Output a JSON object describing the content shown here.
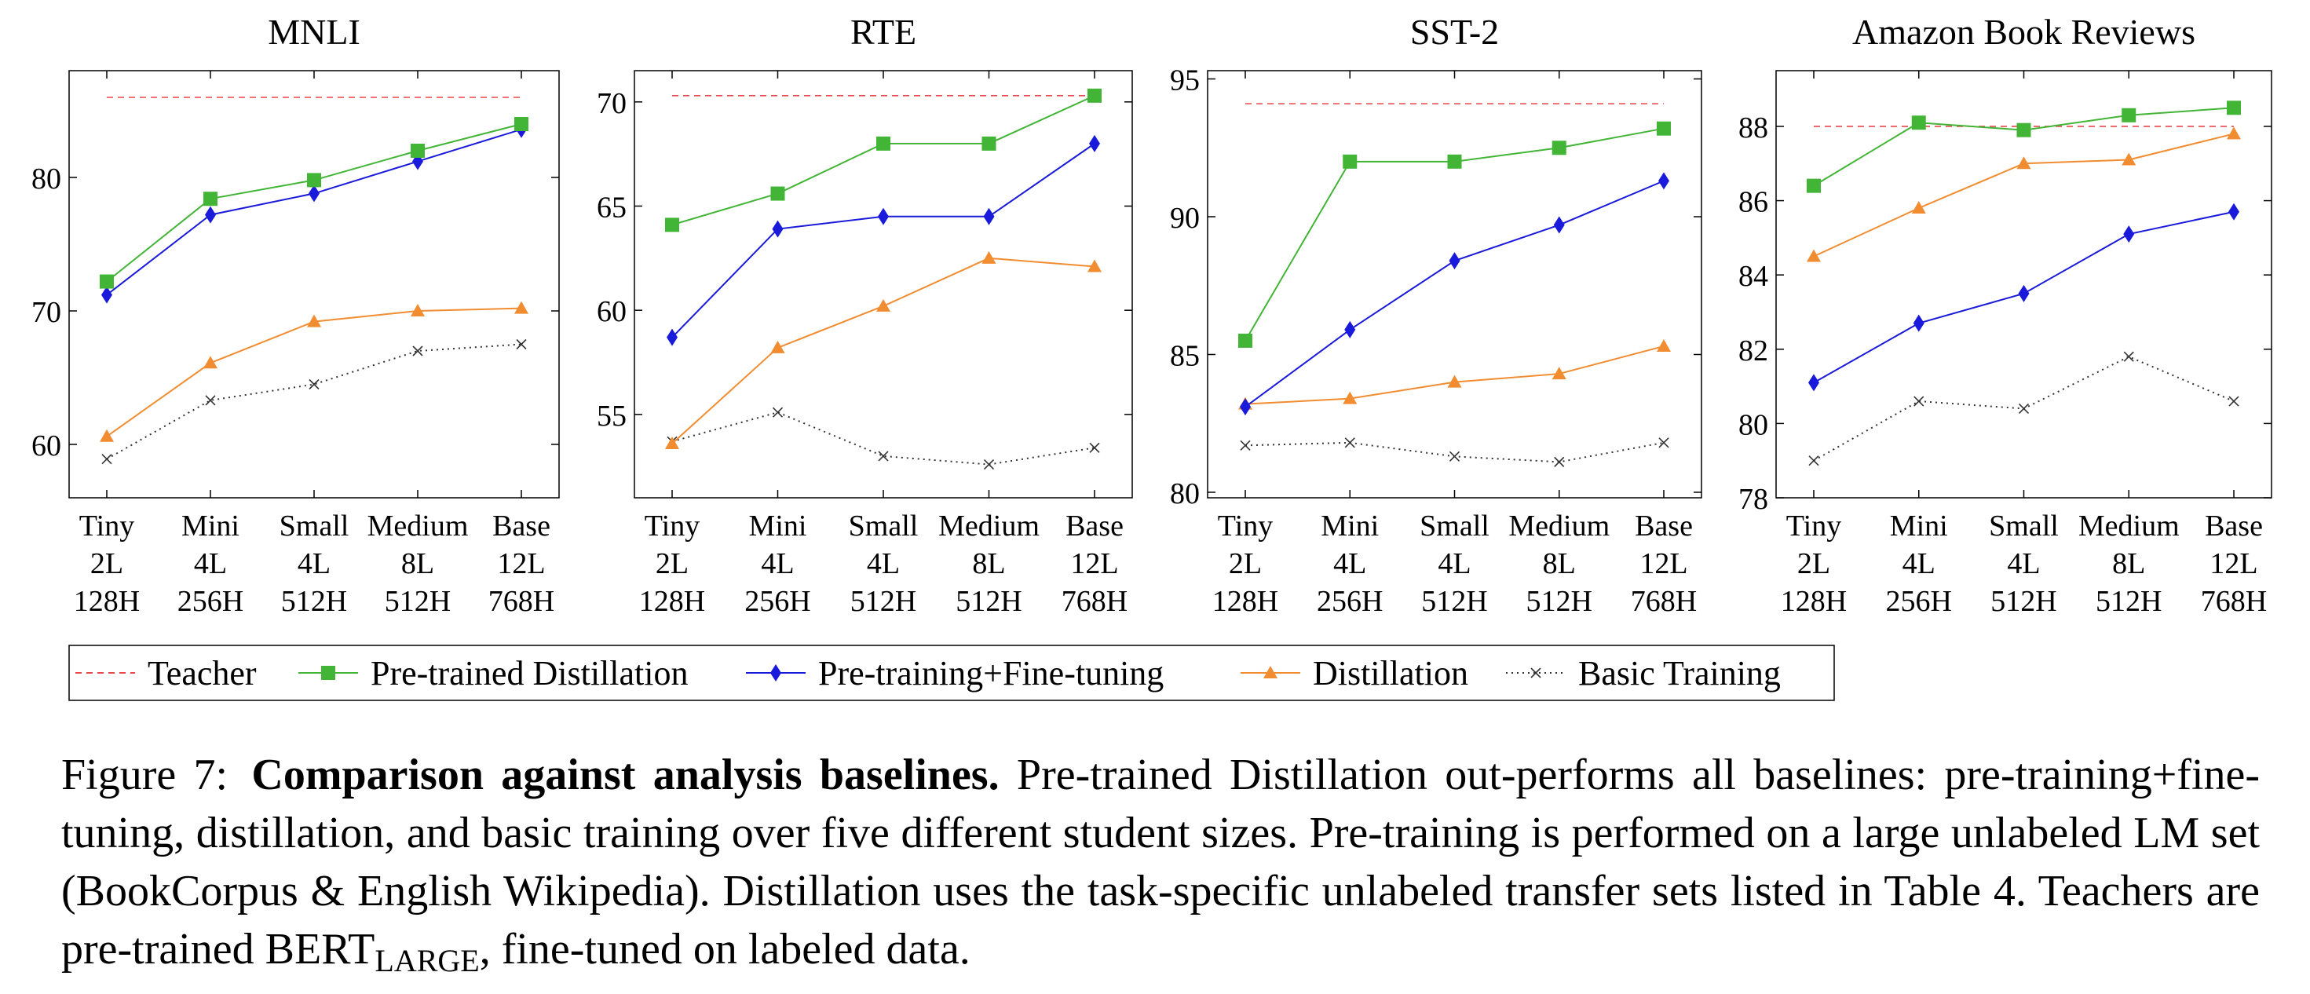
{
  "categories": [
    [
      "Tiny",
      "2L",
      "128H"
    ],
    [
      "Mini",
      "4L",
      "256H"
    ],
    [
      "Small",
      "4L",
      "512H"
    ],
    [
      "Medium",
      "8L",
      "512H"
    ],
    [
      "Base",
      "12L",
      "768H"
    ]
  ],
  "legend": [
    {
      "name": "Teacher",
      "color": "#e8474c",
      "marker": "none",
      "dash": "dashed"
    },
    {
      "name": "Pre-trained Distillation",
      "color": "#42b536",
      "marker": "square",
      "dash": "solid"
    },
    {
      "name": "Pre-training+Fine-tuning",
      "color": "#1a1adb",
      "marker": "diamond",
      "dash": "solid"
    },
    {
      "name": "Distillation",
      "color": "#f28c30",
      "marker": "triangle",
      "dash": "solid"
    },
    {
      "name": "Basic Training",
      "color": "#333333",
      "marker": "x",
      "dash": "dotted"
    }
  ],
  "chart_data": [
    {
      "type": "line",
      "title": "MNLI",
      "xlabel": "",
      "ylabel": "",
      "ylim": [
        56,
        88
      ],
      "yticks": [
        60,
        70,
        80
      ],
      "teacher": 86,
      "series": [
        {
          "name": "Pre-trained Distillation",
          "values": [
            72.2,
            78.4,
            79.8,
            82.0,
            84.0
          ]
        },
        {
          "name": "Pre-training+Fine-tuning",
          "values": [
            71.2,
            77.2,
            78.8,
            81.2,
            83.6
          ]
        },
        {
          "name": "Distillation",
          "values": [
            60.6,
            66.1,
            69.2,
            70.0,
            70.2
          ]
        },
        {
          "name": "Basic Training",
          "values": [
            58.9,
            63.3,
            64.5,
            67.0,
            67.5
          ]
        }
      ]
    },
    {
      "type": "line",
      "title": "RTE",
      "xlabel": "",
      "ylabel": "",
      "ylim": [
        51,
        71.5
      ],
      "yticks": [
        55,
        60,
        65,
        70
      ],
      "teacher": 70.3,
      "series": [
        {
          "name": "Pre-trained Distillation",
          "values": [
            64.1,
            65.6,
            68.0,
            68.0,
            70.3
          ]
        },
        {
          "name": "Pre-training+Fine-tuning",
          "values": [
            58.7,
            63.9,
            64.5,
            64.5,
            68.0
          ]
        },
        {
          "name": "Distillation",
          "values": [
            53.6,
            58.2,
            60.2,
            62.5,
            62.1
          ]
        },
        {
          "name": "Basic Training",
          "values": [
            53.7,
            55.1,
            53.0,
            52.6,
            53.4
          ]
        }
      ]
    },
    {
      "type": "line",
      "title": "SST-2",
      "xlabel": "",
      "ylabel": "",
      "ylim": [
        79.8,
        95.3
      ],
      "yticks": [
        80,
        85,
        90,
        95
      ],
      "teacher": 94.1,
      "series": [
        {
          "name": "Pre-trained Distillation",
          "values": [
            85.5,
            92.0,
            92.0,
            92.5,
            93.2
          ]
        },
        {
          "name": "Pre-training+Fine-tuning",
          "values": [
            83.1,
            85.9,
            88.4,
            89.7,
            91.3
          ]
        },
        {
          "name": "Distillation",
          "values": [
            83.2,
            83.4,
            84.0,
            84.3,
            85.3
          ]
        },
        {
          "name": "Basic Training",
          "values": [
            81.7,
            81.8,
            81.3,
            81.1,
            81.8
          ]
        }
      ]
    },
    {
      "type": "line",
      "title": "Amazon Book Reviews",
      "xlabel": "",
      "ylabel": "",
      "ylim": [
        78,
        89.5
      ],
      "yticks": [
        78,
        80,
        82,
        84,
        86,
        88
      ],
      "teacher": 88.0,
      "series": [
        {
          "name": "Pre-trained Distillation",
          "values": [
            86.4,
            88.1,
            87.9,
            88.3,
            88.5
          ]
        },
        {
          "name": "Pre-training+Fine-tuning",
          "values": [
            81.1,
            82.7,
            83.5,
            85.1,
            85.7
          ]
        },
        {
          "name": "Distillation",
          "values": [
            84.5,
            85.8,
            87.0,
            87.1,
            87.8
          ]
        },
        {
          "name": "Basic Training",
          "values": [
            79.0,
            80.6,
            80.4,
            81.8,
            80.6
          ]
        }
      ]
    }
  ],
  "caption": {
    "label": "Figure 7:",
    "bold": "Comparison against analysis baselines.",
    "text": "Pre-trained Distillation out-performs all baselines: pre-training+fine-tuning, distillation, and basic training over five different student sizes. Pre-training is performed on a large unlabeled LM set (BookCorpus & English Wikipedia). Distillation uses the task-specific unlabeled transfer sets listed in Table 4. Teachers are pre-trained BERT",
    "sub": "LARGE",
    "tail": ", fine-tuned on labeled data."
  }
}
